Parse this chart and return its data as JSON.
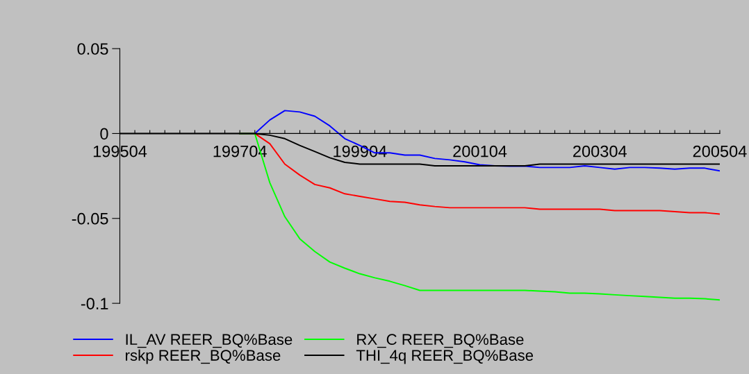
{
  "chart_data": {
    "type": "line",
    "categories": [
      "199504",
      null,
      null,
      null,
      null,
      null,
      null,
      null,
      "199704",
      null,
      null,
      null,
      null,
      null,
      null,
      null,
      "199904",
      null,
      null,
      null,
      null,
      null,
      null,
      null,
      "200104",
      null,
      null,
      null,
      null,
      null,
      null,
      null,
      "200304",
      null,
      null,
      null,
      null,
      null,
      null,
      null,
      "200504"
    ],
    "series": [
      {
        "name": "IL_AV REER_BQ%Base",
        "color": "#0000ff",
        "values": [
          null,
          null,
          null,
          null,
          null,
          null,
          null,
          null,
          0,
          0,
          0.008,
          0.0135,
          0.0127,
          0.0102,
          0.0045,
          -0.003,
          -0.007,
          -0.0114,
          -0.0114,
          -0.0127,
          -0.0127,
          -0.0147,
          -0.0155,
          -0.0167,
          -0.0184,
          -0.019,
          -0.0192,
          -0.0192,
          -0.02,
          -0.02,
          -0.02,
          -0.019,
          -0.02,
          -0.021,
          -0.02,
          -0.02,
          -0.0204,
          -0.021,
          -0.0204,
          -0.0204,
          -0.022
        ]
      },
      {
        "name": "rskp REER_BQ%Base",
        "color": "#ff0000",
        "values": [
          null,
          null,
          null,
          null,
          null,
          null,
          null,
          null,
          0,
          0,
          -0.006,
          -0.018,
          -0.0245,
          -0.03,
          -0.032,
          -0.0355,
          -0.037,
          -0.0385,
          -0.04,
          -0.0405,
          -0.042,
          -0.043,
          -0.0437,
          -0.0437,
          -0.0437,
          -0.0437,
          -0.0437,
          -0.0437,
          -0.0446,
          -0.0446,
          -0.0446,
          -0.0446,
          -0.0446,
          -0.0454,
          -0.0454,
          -0.0454,
          -0.0454,
          -0.046,
          -0.0466,
          -0.0466,
          -0.0474
        ]
      },
      {
        "name": "RX_C REER_BQ%Base",
        "color": "#00ff00",
        "values": [
          null,
          null,
          null,
          null,
          null,
          null,
          null,
          null,
          0,
          0,
          -0.029,
          -0.049,
          -0.062,
          -0.0695,
          -0.0757,
          -0.0793,
          -0.0826,
          -0.085,
          -0.087,
          -0.0896,
          -0.0924,
          -0.0924,
          -0.0924,
          -0.0924,
          -0.0924,
          -0.0924,
          -0.0924,
          -0.0924,
          -0.0928,
          -0.0932,
          -0.094,
          -0.094,
          -0.0944,
          -0.095,
          -0.0955,
          -0.096,
          -0.0965,
          -0.097,
          -0.097,
          -0.0973,
          -0.098
        ]
      },
      {
        "name": "THI_4q REER_BQ%Base",
        "color": "#000000",
        "values": [
          0,
          0,
          0,
          0,
          0,
          0,
          0,
          0,
          0,
          0,
          -0.001,
          -0.003,
          -0.007,
          -0.0106,
          -0.0143,
          -0.017,
          -0.018,
          -0.018,
          -0.018,
          -0.018,
          -0.018,
          -0.019,
          -0.019,
          -0.019,
          -0.019,
          -0.019,
          -0.019,
          -0.019,
          -0.018,
          -0.018,
          -0.018,
          -0.018,
          -0.018,
          -0.018,
          -0.018,
          -0.018,
          -0.018,
          -0.018,
          -0.018,
          -0.018,
          -0.018
        ]
      }
    ],
    "ylim": [
      -0.1,
      0.05
    ],
    "yticks": [
      -0.1,
      -0.05,
      0,
      0.05
    ],
    "grid": false,
    "legend": "bottom left"
  }
}
